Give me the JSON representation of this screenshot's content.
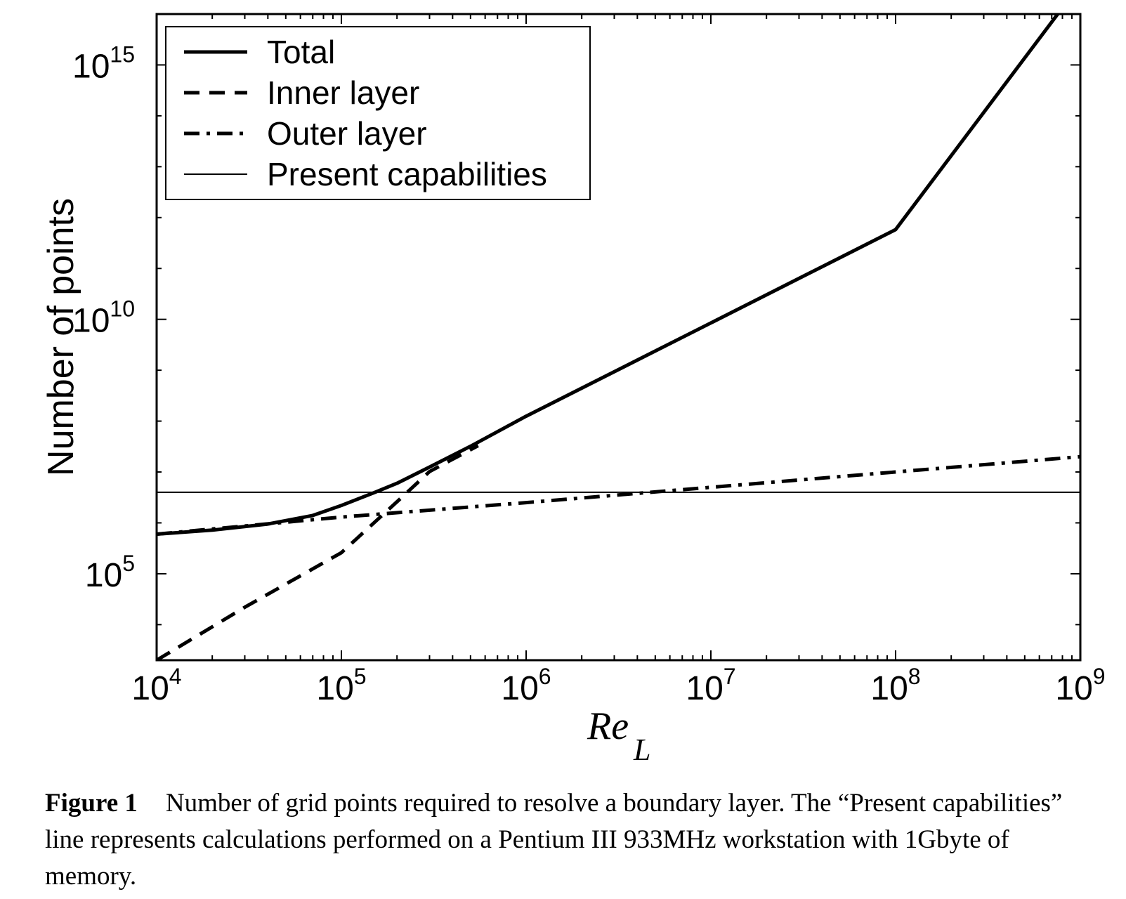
{
  "chart_data": {
    "type": "line",
    "x_scale": "log",
    "y_scale": "log",
    "xlim": [
      10000,
      1000000000
    ],
    "ylim": [
      2000,
      10000000000000000
    ],
    "xlabel": "Re",
    "xlabel_subscript": "L",
    "ylabel": "Number of points",
    "x_ticks": [
      {
        "value": 10000,
        "base": "10",
        "exp": "4"
      },
      {
        "value": 100000,
        "base": "10",
        "exp": "5"
      },
      {
        "value": 1000000,
        "base": "10",
        "exp": "6"
      },
      {
        "value": 10000000,
        "base": "10",
        "exp": "7"
      },
      {
        "value": 100000000,
        "base": "10",
        "exp": "8"
      },
      {
        "value": 1000000000,
        "base": "10",
        "exp": "9"
      }
    ],
    "y_ticks": [
      {
        "value": 100000,
        "base": "10",
        "exp": "5"
      },
      {
        "value": 10000000000,
        "base": "10",
        "exp": "10"
      },
      {
        "value": 1000000000000000,
        "base": "10",
        "exp": "15"
      }
    ],
    "legend_position": "top-left",
    "series": [
      {
        "name": "Total",
        "style": "solid-thick",
        "x": [
          10000,
          20000,
          40000,
          70000,
          100000,
          150000,
          200000,
          300000,
          500000,
          1000000,
          10000000,
          100000000,
          1000000000
        ],
        "y": [
          600000,
          720000,
          950000,
          1400000,
          2200000,
          3900000,
          6000000,
          12500000,
          32000000,
          125000000,
          8500000000,
          580000000000,
          39000000000000000
        ]
      },
      {
        "name": "Inner layer",
        "style": "dashed",
        "x": [
          10000,
          30000,
          100000,
          200000,
          300000,
          550000
        ],
        "y": [
          2000,
          22000,
          260000,
          2600000,
          10200000,
          33000000
        ]
      },
      {
        "name": "Outer layer",
        "style": "dash-dot",
        "x": [
          10000,
          100000,
          1000000,
          10000000,
          100000000,
          1000000000
        ],
        "y": [
          600000,
          1300000,
          2500000,
          5000000,
          10000000,
          20000000
        ]
      },
      {
        "name": "Present capabilities",
        "style": "solid-thin",
        "x": [
          10000,
          1000000000
        ],
        "y": [
          4000000,
          4000000
        ]
      }
    ]
  },
  "caption": {
    "label": "Figure 1",
    "text": "Number of grid points required to resolve a boundary layer. The “Present capabilities” line represents calculations performed on a Pentium III 933MHz workstation with 1Gbyte of memory."
  }
}
